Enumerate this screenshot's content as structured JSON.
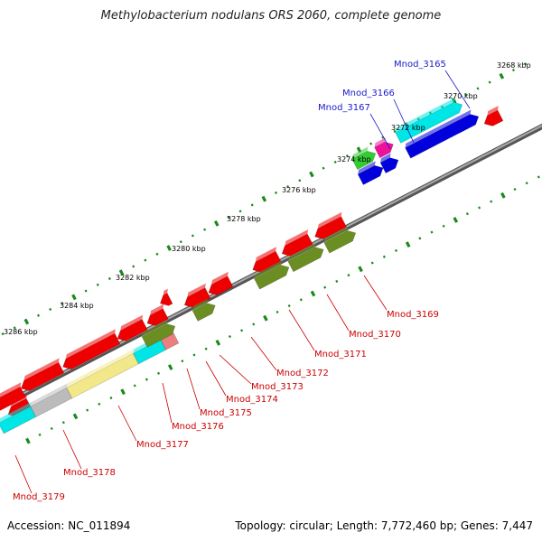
{
  "title": "Methylobacterium nodulans ORS 2060, complete genome",
  "footer": {
    "accession": "Accession: NC_011894",
    "stats": "Topology: circular; Length: 7,772,460 bp; Genes: 7,447"
  },
  "kbp_labels": [
    "3268 kbp",
    "3270 kbp",
    "3272 kbp",
    "3274 kbp",
    "3276 kbp",
    "3278 kbp",
    "3280 kbp",
    "3282 kbp",
    "3284 kbp",
    "3286 kbp"
  ],
  "gene_labels_top": [
    {
      "name": "Mnod_3165",
      "color": "#1a1acc"
    },
    {
      "name": "Mnod_3166",
      "color": "#1a1acc"
    },
    {
      "name": "Mnod_3167",
      "color": "#1a1acc"
    }
  ],
  "gene_labels_bottom": [
    {
      "name": "Mnod_3169",
      "color": "#cc0000"
    },
    {
      "name": "Mnod_3170",
      "color": "#cc0000"
    },
    {
      "name": "Mnod_3171",
      "color": "#cc0000"
    },
    {
      "name": "Mnod_3172",
      "color": "#cc0000"
    },
    {
      "name": "Mnod_3173",
      "color": "#cc0000"
    },
    {
      "name": "Mnod_3174",
      "color": "#cc0000"
    },
    {
      "name": "Mnod_3175",
      "color": "#cc0000"
    },
    {
      "name": "Mnod_3176",
      "color": "#cc0000"
    },
    {
      "name": "Mnod_3177",
      "color": "#cc0000"
    },
    {
      "name": "Mnod_3178",
      "color": "#cc0000"
    },
    {
      "name": "Mnod_3179",
      "color": "#cc0000"
    }
  ],
  "colors": {
    "red": "#ee0000",
    "olive": "#6b8e23",
    "blue": "#0000dd",
    "cyan": "#00e5e5",
    "green": "#33cc33",
    "magenta": "#ee1199",
    "yellow": "#f2e88a",
    "gray": "#bbbbbb",
    "pink": "#e88080",
    "tick": "#1a8a1a",
    "backbone": "#888888"
  }
}
